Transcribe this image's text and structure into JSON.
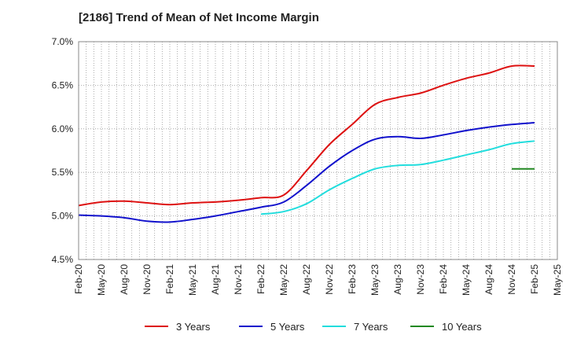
{
  "chart_data": {
    "type": "line",
    "title": "[2186]  Trend of Mean of Net Income Margin",
    "xlabel": "",
    "ylabel": "",
    "x_ticks": [
      "Feb-20",
      "May-20",
      "Aug-20",
      "Nov-20",
      "Feb-21",
      "May-21",
      "Aug-21",
      "Nov-21",
      "Feb-22",
      "May-22",
      "Aug-22",
      "Nov-22",
      "Feb-23",
      "May-23",
      "Aug-23",
      "Nov-23",
      "Feb-24",
      "May-24",
      "Aug-24",
      "Nov-24",
      "Feb-25",
      "May-25"
    ],
    "y_ticks": [
      "4.5%",
      "5.0%",
      "5.5%",
      "6.0%",
      "6.5%",
      "7.0%"
    ],
    "ylim": [
      4.5,
      7.0
    ],
    "grid": true,
    "legend_position": "bottom",
    "series": [
      {
        "name": "3 Years",
        "color": "#dd1111",
        "values": [
          {
            "x": "Feb-20",
            "y": 5.12
          },
          {
            "x": "May-20",
            "y": 5.16
          },
          {
            "x": "Aug-20",
            "y": 5.17
          },
          {
            "x": "Nov-20",
            "y": 5.15
          },
          {
            "x": "Feb-21",
            "y": 5.13
          },
          {
            "x": "May-21",
            "y": 5.15
          },
          {
            "x": "Aug-21",
            "y": 5.16
          },
          {
            "x": "Nov-21",
            "y": 5.18
          },
          {
            "x": "Feb-22",
            "y": 5.21
          },
          {
            "x": "May-22",
            "y": 5.24
          },
          {
            "x": "Aug-22",
            "y": 5.52
          },
          {
            "x": "Nov-22",
            "y": 5.82
          },
          {
            "x": "Feb-23",
            "y": 6.05
          },
          {
            "x": "May-23",
            "y": 6.28
          },
          {
            "x": "Aug-23",
            "y": 6.36
          },
          {
            "x": "Nov-23",
            "y": 6.41
          },
          {
            "x": "Feb-24",
            "y": 6.5
          },
          {
            "x": "May-24",
            "y": 6.58
          },
          {
            "x": "Aug-24",
            "y": 6.64
          },
          {
            "x": "Nov-24",
            "y": 6.72
          },
          {
            "x": "Feb-25",
            "y": 6.72
          }
        ]
      },
      {
        "name": "5 Years",
        "color": "#1111cc",
        "values": [
          {
            "x": "Feb-20",
            "y": 5.01
          },
          {
            "x": "May-20",
            "y": 5.0
          },
          {
            "x": "Aug-20",
            "y": 4.98
          },
          {
            "x": "Nov-20",
            "y": 4.94
          },
          {
            "x": "Feb-21",
            "y": 4.93
          },
          {
            "x": "May-21",
            "y": 4.96
          },
          {
            "x": "Aug-21",
            "y": 5.0
          },
          {
            "x": "Nov-21",
            "y": 5.05
          },
          {
            "x": "Feb-22",
            "y": 5.1
          },
          {
            "x": "May-22",
            "y": 5.16
          },
          {
            "x": "Aug-22",
            "y": 5.35
          },
          {
            "x": "Nov-22",
            "y": 5.57
          },
          {
            "x": "Feb-23",
            "y": 5.75
          },
          {
            "x": "May-23",
            "y": 5.88
          },
          {
            "x": "Aug-23",
            "y": 5.91
          },
          {
            "x": "Nov-23",
            "y": 5.89
          },
          {
            "x": "Feb-24",
            "y": 5.93
          },
          {
            "x": "May-24",
            "y": 5.98
          },
          {
            "x": "Aug-24",
            "y": 6.02
          },
          {
            "x": "Nov-24",
            "y": 6.05
          },
          {
            "x": "Feb-25",
            "y": 6.07
          }
        ]
      },
      {
        "name": "7 Years",
        "color": "#22dddd",
        "values": [
          {
            "x": "Feb-22",
            "y": 5.02
          },
          {
            "x": "May-22",
            "y": 5.05
          },
          {
            "x": "Aug-22",
            "y": 5.14
          },
          {
            "x": "Nov-22",
            "y": 5.3
          },
          {
            "x": "Feb-23",
            "y": 5.43
          },
          {
            "x": "May-23",
            "y": 5.54
          },
          {
            "x": "Aug-23",
            "y": 5.58
          },
          {
            "x": "Nov-23",
            "y": 5.59
          },
          {
            "x": "Feb-24",
            "y": 5.64
          },
          {
            "x": "May-24",
            "y": 5.7
          },
          {
            "x": "Aug-24",
            "y": 5.76
          },
          {
            "x": "Nov-24",
            "y": 5.83
          },
          {
            "x": "Feb-25",
            "y": 5.86
          }
        ]
      },
      {
        "name": "10 Years",
        "color": "#228822",
        "values": [
          {
            "x": "Nov-24",
            "y": 5.54
          },
          {
            "x": "Feb-25",
            "y": 5.54
          }
        ]
      }
    ]
  }
}
